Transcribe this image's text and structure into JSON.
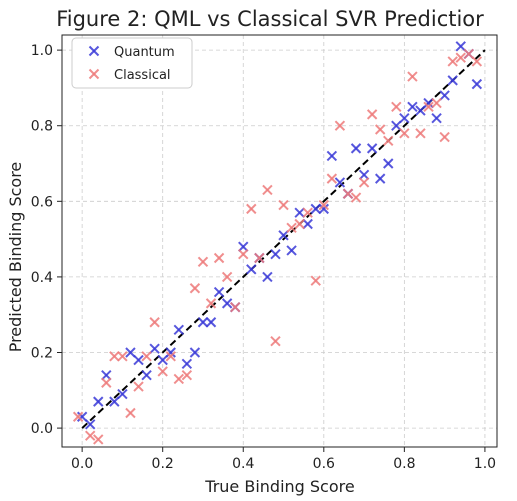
{
  "chart_data": {
    "type": "scatter",
    "title": "Figure 2: QML vs Classical SVR Predictior",
    "xlabel": "True Binding Score",
    "ylabel": "Predicted Binding Score",
    "xlim": [
      -0.05,
      1.03
    ],
    "ylim": [
      -0.05,
      1.04
    ],
    "xticks": [
      "0.0",
      "0.2",
      "0.4",
      "0.6",
      "0.8",
      "1.0"
    ],
    "yticks": [
      "0.0",
      "0.2",
      "0.4",
      "0.6",
      "0.8",
      "1.0"
    ],
    "grid": true,
    "legend_position": "top-left",
    "series": [
      {
        "name": "Quantum",
        "color": "#3a3ad8",
        "marker": "x",
        "points": [
          [
            0.0,
            0.03
          ],
          [
            0.02,
            0.01
          ],
          [
            0.04,
            0.07
          ],
          [
            0.06,
            0.14
          ],
          [
            0.08,
            0.07
          ],
          [
            0.1,
            0.09
          ],
          [
            0.12,
            0.2
          ],
          [
            0.14,
            0.18
          ],
          [
            0.16,
            0.14
          ],
          [
            0.18,
            0.21
          ],
          [
            0.2,
            0.18
          ],
          [
            0.22,
            0.2
          ],
          [
            0.24,
            0.26
          ],
          [
            0.26,
            0.17
          ],
          [
            0.28,
            0.2
          ],
          [
            0.3,
            0.28
          ],
          [
            0.32,
            0.28
          ],
          [
            0.34,
            0.36
          ],
          [
            0.36,
            0.33
          ],
          [
            0.38,
            0.32
          ],
          [
            0.4,
            0.48
          ],
          [
            0.42,
            0.42
          ],
          [
            0.44,
            0.45
          ],
          [
            0.46,
            0.4
          ],
          [
            0.48,
            0.46
          ],
          [
            0.5,
            0.51
          ],
          [
            0.52,
            0.47
          ],
          [
            0.54,
            0.57
          ],
          [
            0.56,
            0.54
          ],
          [
            0.58,
            0.58
          ],
          [
            0.6,
            0.58
          ],
          [
            0.62,
            0.72
          ],
          [
            0.64,
            0.65
          ],
          [
            0.66,
            0.62
          ],
          [
            0.68,
            0.74
          ],
          [
            0.7,
            0.67
          ],
          [
            0.72,
            0.74
          ],
          [
            0.74,
            0.66
          ],
          [
            0.76,
            0.7
          ],
          [
            0.78,
            0.8
          ],
          [
            0.8,
            0.82
          ],
          [
            0.82,
            0.85
          ],
          [
            0.84,
            0.84
          ],
          [
            0.86,
            0.86
          ],
          [
            0.88,
            0.82
          ],
          [
            0.9,
            0.88
          ],
          [
            0.92,
            0.92
          ],
          [
            0.94,
            1.01
          ],
          [
            0.96,
            0.99
          ],
          [
            0.98,
            0.91
          ]
        ]
      },
      {
        "name": "Classical",
        "color": "#ee7b7b",
        "marker": "x",
        "points": [
          [
            -0.01,
            0.03
          ],
          [
            0.02,
            -0.02
          ],
          [
            0.04,
            -0.03
          ],
          [
            0.06,
            0.12
          ],
          [
            0.08,
            0.19
          ],
          [
            0.1,
            0.19
          ],
          [
            0.12,
            0.04
          ],
          [
            0.14,
            0.11
          ],
          [
            0.16,
            0.19
          ],
          [
            0.18,
            0.28
          ],
          [
            0.2,
            0.15
          ],
          [
            0.22,
            0.19
          ],
          [
            0.24,
            0.13
          ],
          [
            0.26,
            0.14
          ],
          [
            0.28,
            0.37
          ],
          [
            0.3,
            0.44
          ],
          [
            0.32,
            0.33
          ],
          [
            0.34,
            0.45
          ],
          [
            0.36,
            0.4
          ],
          [
            0.38,
            0.32
          ],
          [
            0.4,
            0.46
          ],
          [
            0.42,
            0.58
          ],
          [
            0.44,
            0.45
          ],
          [
            0.46,
            0.63
          ],
          [
            0.48,
            0.23
          ],
          [
            0.5,
            0.59
          ],
          [
            0.52,
            0.53
          ],
          [
            0.54,
            0.54
          ],
          [
            0.56,
            0.57
          ],
          [
            0.58,
            0.39
          ],
          [
            0.6,
            0.59
          ],
          [
            0.62,
            0.66
          ],
          [
            0.64,
            0.8
          ],
          [
            0.66,
            0.62
          ],
          [
            0.68,
            0.61
          ],
          [
            0.7,
            0.65
          ],
          [
            0.72,
            0.83
          ],
          [
            0.74,
            0.79
          ],
          [
            0.76,
            0.76
          ],
          [
            0.78,
            0.85
          ],
          [
            0.8,
            0.78
          ],
          [
            0.82,
            0.93
          ],
          [
            0.84,
            0.78
          ],
          [
            0.86,
            0.85
          ],
          [
            0.88,
            0.86
          ],
          [
            0.9,
            0.77
          ],
          [
            0.92,
            0.97
          ],
          [
            0.94,
            0.98
          ],
          [
            0.96,
            0.99
          ],
          [
            0.98,
            0.97
          ]
        ]
      }
    ],
    "reference_line": {
      "from": [
        0.0,
        0.0
      ],
      "to": [
        1.0,
        1.0
      ],
      "style": "dashed",
      "color": "#000000"
    }
  }
}
